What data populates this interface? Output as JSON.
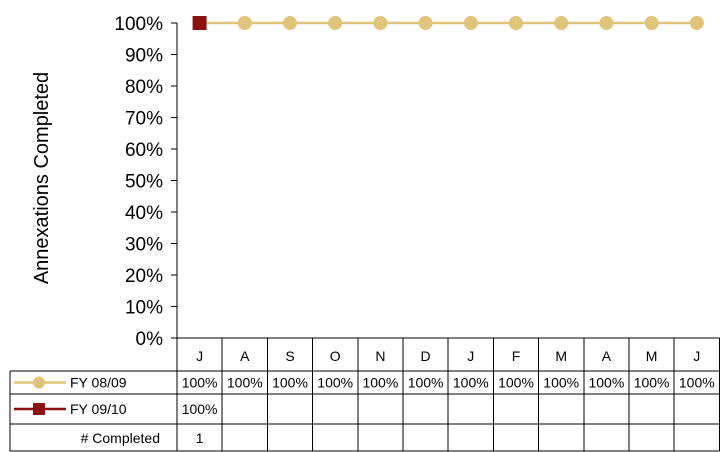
{
  "chart_data": {
    "type": "line",
    "ylabel": "Annexations Completed",
    "y_ticks": [
      "0%",
      "10%",
      "20%",
      "30%",
      "40%",
      "50%",
      "60%",
      "70%",
      "80%",
      "90%",
      "100%"
    ],
    "ylim": [
      0,
      100
    ],
    "categories": [
      "J",
      "A",
      "S",
      "O",
      "N",
      "D",
      "J",
      "F",
      "M",
      "A",
      "M",
      "J"
    ],
    "grid": false,
    "legend": "data-table",
    "series": [
      {
        "name": "FY 08/09",
        "color": "#e0c47a",
        "marker": "circle",
        "values": [
          100,
          100,
          100,
          100,
          100,
          100,
          100,
          100,
          100,
          100,
          100,
          100
        ],
        "labels": [
          "100%",
          "100%",
          "100%",
          "100%",
          "100%",
          "100%",
          "100%",
          "100%",
          "100%",
          "100%",
          "100%",
          "100%"
        ]
      },
      {
        "name": "FY 09/10",
        "color": "#8b1010",
        "marker": "square",
        "values": [
          100,
          null,
          null,
          null,
          null,
          null,
          null,
          null,
          null,
          null,
          null,
          null
        ],
        "labels": [
          "100%",
          "",
          "",
          "",
          "",
          "",
          "",
          "",
          "",
          "",
          "",
          ""
        ]
      }
    ],
    "extra_rows": [
      {
        "name": "# Completed",
        "labels": [
          "1",
          "",
          "",
          "",
          "",
          "",
          "",
          "",
          "",
          "",
          "",
          ""
        ]
      }
    ]
  }
}
